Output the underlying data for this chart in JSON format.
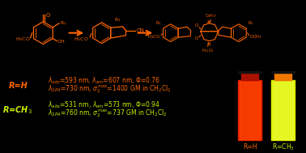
{
  "bg_color": "#000000",
  "orange": "#FF6600",
  "yellow_green": "#CCEE00",
  "rh_line1": "$\\lambda_{abs}$=593 nm, $\\lambda_{em}$=607 nm, $\\Phi$=0.76",
  "rh_line2": "$\\lambda_{2PA}$=730 nm, $\\sigma_2^{max}$=1400 GM in CH$_2$Cl$_2$",
  "rch3_line1": "$\\lambda_{abs}$=531 nm, $\\lambda_{em}$=573 nm, $\\Phi$=0.94",
  "rch3_line2": "$\\lambda_{2PA}$=760 nm, $\\sigma_2^{max}$=737 GM in CH$_2$Cl$_2$",
  "rh_label": "R=H",
  "rch3_label": "R=CH$_3$",
  "vial_rh": "R=H",
  "vial_rch3": "R=CH$_3$",
  "vial_red_body": "#EE2200",
  "vial_red_glow": "#FF5500",
  "vial_red_cap_outer": "#AA1100",
  "vial_red_cap_inner": "#CC2200",
  "vial_yellow_body": "#DDEE00",
  "vial_yellow_glow": "#EEFF44",
  "vial_yellow_cap_outer": "#EE7700",
  "vial_yellow_cap_inner": "#FFAA00"
}
